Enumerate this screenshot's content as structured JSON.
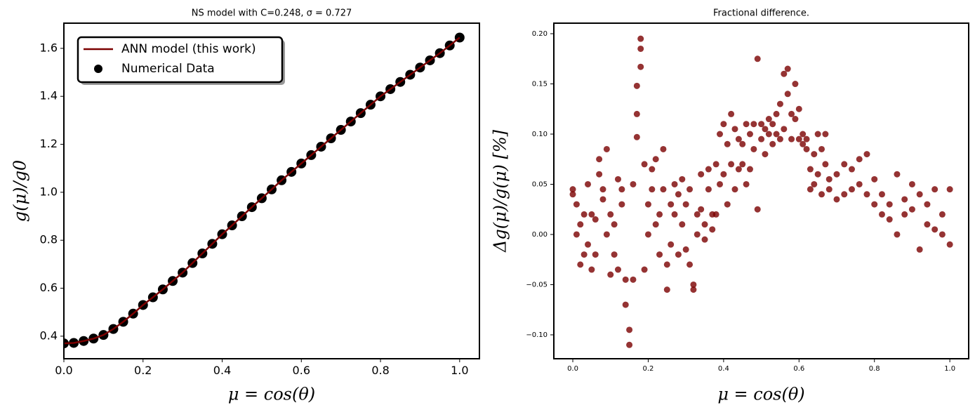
{
  "chart_data": [
    {
      "type": "line",
      "title": "NS model with C=0.248, σ = 0.727",
      "xlabel": "μ = cos(θ)",
      "ylabel": "g(μ)/g0",
      "x": [
        0,
        0.025,
        0.05,
        0.075,
        0.1,
        0.125,
        0.15,
        0.175,
        0.2,
        0.225,
        0.25,
        0.275,
        0.3,
        0.325,
        0.35,
        0.375,
        0.4,
        0.425,
        0.45,
        0.475,
        0.5,
        0.525,
        0.55,
        0.575,
        0.6,
        0.625,
        0.65,
        0.675,
        0.7,
        0.725,
        0.75,
        0.775,
        0.8,
        0.825,
        0.85,
        0.875,
        0.9,
        0.925,
        0.95,
        0.975,
        1
      ],
      "series": [
        {
          "name": "ANN model (this work)",
          "color": "#7b0000",
          "mark": "line",
          "values": [
            0.37,
            0.372,
            0.38,
            0.39,
            0.405,
            0.43,
            0.46,
            0.494,
            0.53,
            0.562,
            0.595,
            0.63,
            0.665,
            0.705,
            0.745,
            0.785,
            0.825,
            0.862,
            0.9,
            0.938,
            0.975,
            1.012,
            1.05,
            1.085,
            1.12,
            1.155,
            1.19,
            1.225,
            1.26,
            1.295,
            1.33,
            1.365,
            1.4,
            1.43,
            1.46,
            1.49,
            1.52,
            1.55,
            1.58,
            1.612,
            1.645
          ]
        },
        {
          "name": "Numerical Data",
          "color": "#000000",
          "mark": "scatter",
          "values": [
            0.37,
            0.372,
            0.38,
            0.39,
            0.405,
            0.43,
            0.46,
            0.494,
            0.53,
            0.562,
            0.595,
            0.63,
            0.665,
            0.705,
            0.745,
            0.785,
            0.825,
            0.862,
            0.9,
            0.938,
            0.975,
            1.012,
            1.05,
            1.085,
            1.12,
            1.155,
            1.19,
            1.225,
            1.26,
            1.295,
            1.33,
            1.365,
            1.4,
            1.43,
            1.46,
            1.49,
            1.52,
            1.55,
            1.58,
            1.612,
            1.645
          ]
        }
      ],
      "xlim": [
        0,
        1.05
      ],
      "ylim": [
        0.306,
        1.705
      ],
      "xticks": [
        {
          "value": 0,
          "label": "0.0"
        },
        0.2,
        0.4,
        0.6,
        0.8,
        {
          "value": 1,
          "label": "1.0"
        }
      ],
      "yticks": [
        0.4,
        0.6,
        0.8,
        {
          "value": 1,
          "label": "1.0"
        },
        1.2,
        1.4,
        1.6
      ],
      "legend": "upper left"
    },
    {
      "type": "scatter",
      "title": "Fractional difference.",
      "xlabel": "μ = cos(θ)",
      "ylabel": "Δg(μ)/g(μ)  [%]",
      "color": "#7b0000",
      "x": [
        0,
        0,
        0.01,
        0.01,
        0.02,
        0.02,
        0.03,
        0.03,
        0.04,
        0.04,
        0.05,
        0.05,
        0.06,
        0.06,
        0.07,
        0.07,
        0.08,
        0.08,
        0.09,
        0.09,
        0.1,
        0.1,
        0.11,
        0.11,
        0.12,
        0.12,
        0.13,
        0.13,
        0.14,
        0.14,
        0.15,
        0.15,
        0.16,
        0.16,
        0.17,
        0.17,
        0.17,
        0.18,
        0.18,
        0.18,
        0.19,
        0.19,
        0.2,
        0.2,
        0.21,
        0.21,
        0.22,
        0.22,
        0.23,
        0.23,
        0.24,
        0.24,
        0.25,
        0.25,
        0.26,
        0.26,
        0.27,
        0.27,
        0.28,
        0.28,
        0.29,
        0.29,
        0.3,
        0.3,
        0.31,
        0.31,
        0.32,
        0.32,
        0.33,
        0.33,
        0.34,
        0.34,
        0.35,
        0.35,
        0.36,
        0.36,
        0.37,
        0.37,
        0.38,
        0.38,
        0.39,
        0.39,
        0.4,
        0.4,
        0.41,
        0.41,
        0.42,
        0.42,
        0.43,
        0.43,
        0.44,
        0.44,
        0.45,
        0.45,
        0.46,
        0.46,
        0.47,
        0.47,
        0.48,
        0.48,
        0.49,
        0.49,
        0.5,
        0.5,
        0.51,
        0.51,
        0.52,
        0.52,
        0.53,
        0.53,
        0.54,
        0.54,
        0.55,
        0.55,
        0.56,
        0.56,
        0.57,
        0.57,
        0.58,
        0.58,
        0.59,
        0.59,
        0.6,
        0.6,
        0.61,
        0.61,
        0.62,
        0.62,
        0.63,
        0.63,
        0.64,
        0.64,
        0.65,
        0.65,
        0.66,
        0.66,
        0.67,
        0.67,
        0.68,
        0.68,
        0.7,
        0.7,
        0.72,
        0.72,
        0.74,
        0.74,
        0.76,
        0.76,
        0.78,
        0.78,
        0.8,
        0.8,
        0.82,
        0.82,
        0.84,
        0.84,
        0.86,
        0.86,
        0.88,
        0.88,
        0.9,
        0.9,
        0.92,
        0.92,
        0.94,
        0.94,
        0.96,
        0.96,
        0.98,
        0.98,
        1,
        1
      ],
      "values": [
        0.04,
        0.045,
        0,
        0.03,
        -0.03,
        0.01,
        0.02,
        -0.02,
        -0.01,
        0.05,
        -0.035,
        0.02,
        0.015,
        -0.02,
        0.06,
        0.075,
        0.035,
        0.045,
        0.085,
        0,
        -0.04,
        0.02,
        0.01,
        -0.02,
        0.055,
        -0.035,
        0.03,
        0.045,
        -0.07,
        -0.045,
        -0.11,
        -0.095,
        0.05,
        -0.045,
        0.12,
        0.148,
        0.097,
        0.195,
        0.185,
        0.167,
        -0.035,
        0.07,
        0.03,
        0,
        0.065,
        0.045,
        0.075,
        0.01,
        0.02,
        -0.02,
        0.085,
        0.045,
        -0.055,
        -0.03,
        0.03,
        -0.01,
        0.05,
        0.02,
        -0.02,
        0.04,
        0.01,
        0.055,
        0.03,
        -0.015,
        0.045,
        -0.03,
        -0.055,
        -0.05,
        0.02,
        0,
        0.06,
        0.025,
        0.01,
        -0.005,
        0.065,
        0.045,
        0.02,
        0.005,
        0.07,
        0.02,
        0.1,
        0.05,
        0.11,
        0.06,
        0.03,
        0.09,
        0.12,
        0.07,
        0.045,
        0.105,
        0.095,
        0.065,
        0.07,
        0.09,
        0.11,
        0.05,
        0.065,
        0.1,
        0.11,
        0.085,
        0.175,
        0.025,
        0.11,
        0.095,
        0.08,
        0.105,
        0.1,
        0.115,
        0.11,
        0.09,
        0.12,
        0.1,
        0.095,
        0.13,
        0.16,
        0.105,
        0.165,
        0.14,
        0.12,
        0.095,
        0.15,
        0.115,
        0.125,
        0.095,
        0.1,
        0.09,
        0.095,
        0.085,
        0.065,
        0.045,
        0.08,
        0.05,
        0.1,
        0.06,
        0.085,
        0.04,
        0.1,
        0.07,
        0.055,
        0.045,
        0.06,
        0.035,
        0.07,
        0.04,
        0.065,
        0.045,
        0.075,
        0.05,
        0.08,
        0.04,
        0.055,
        0.03,
        0.04,
        0.02,
        0.03,
        0.015,
        0.06,
        0,
        0.035,
        0.02,
        0.05,
        0.025,
        -0.015,
        0.04,
        0.03,
        0.01,
        0.045,
        0.005,
        0,
        0.02,
        0.045,
        -0.01
      ],
      "xlim": [
        -0.0503,
        1.05
      ],
      "ylim": [
        -0.1238,
        0.2105
      ],
      "xticks": [
        {
          "value": 0,
          "label": "0.0"
        },
        0.2,
        0.4,
        0.6,
        0.8,
        {
          "value": 1,
          "label": "1.0"
        }
      ],
      "yticks": [
        {
          "value": -0.1,
          "label": "−0.10"
        },
        {
          "value": -0.05,
          "label": "−0.05"
        },
        {
          "value": 0,
          "label": "0.00"
        },
        0.05,
        {
          "value": 0.1,
          "label": "0.10"
        },
        0.15,
        {
          "value": 0.2,
          "label": "0.20"
        }
      ]
    }
  ]
}
